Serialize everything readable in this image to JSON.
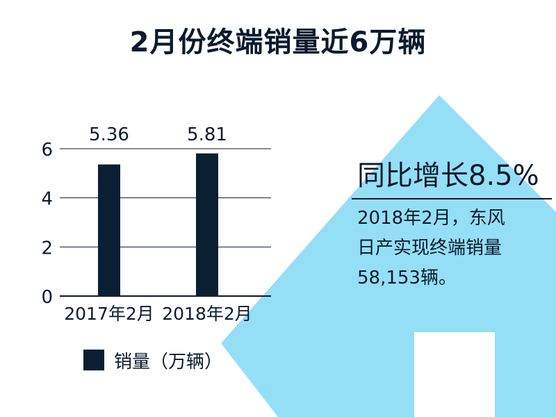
{
  "title": "2月份终端销量近6万辆",
  "colors": {
    "bar": "#0b1f33",
    "arrow": "#95dff6",
    "gridline": "#0b1a2e",
    "text": "#0b1a2e"
  },
  "callout": {
    "headline": "同比增长8.5%",
    "lines": [
      "2018年2月，东风",
      "日产实现终端销量",
      "58,153辆。"
    ]
  },
  "chart_data": {
    "type": "bar",
    "title": "2月份终端销量近6万辆",
    "categories": [
      "2017年2月",
      "2018年2月"
    ],
    "series": [
      {
        "name": "销量（万辆）",
        "values": [
          5.36,
          5.81
        ]
      }
    ],
    "data_labels": [
      "5.36",
      "5.81"
    ],
    "ylim": [
      0,
      6
    ],
    "yticks": [
      0,
      2,
      4,
      6
    ],
    "grid": true,
    "legend": "bottom-left",
    "xlabel": "",
    "ylabel": ""
  }
}
